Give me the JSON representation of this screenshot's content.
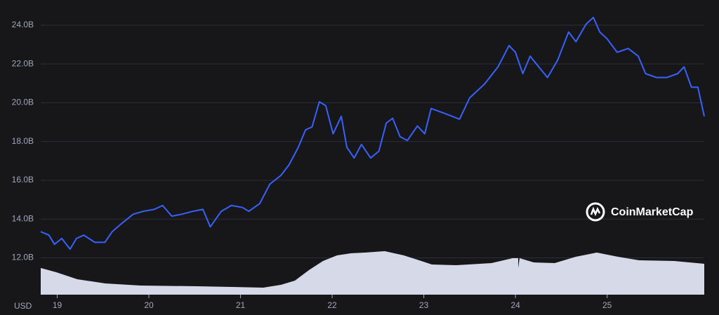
{
  "chart_data": {
    "type": "line",
    "x": [
      18.82,
      18.91,
      18.97,
      19.05,
      19.14,
      19.21,
      19.29,
      19.41,
      19.52,
      19.6,
      19.71,
      19.83,
      19.94,
      20.06,
      20.15,
      20.25,
      20.36,
      20.48,
      20.59,
      20.67,
      20.79,
      20.9,
      21.02,
      21.09,
      21.21,
      21.32,
      21.44,
      21.53,
      21.63,
      21.71,
      21.78,
      21.86,
      21.93,
      22.01,
      22.1,
      22.16,
      22.24,
      22.32,
      22.42,
      22.51,
      22.59,
      22.66,
      22.74,
      22.82,
      22.93,
      23.01,
      23.08,
      23.2,
      23.31,
      23.39,
      23.5,
      23.66,
      23.81,
      23.93,
      24.0,
      24.08,
      24.16,
      24.28,
      24.35,
      24.46,
      24.58,
      24.66,
      24.77,
      24.85,
      24.92,
      25.0,
      25.11,
      25.23,
      25.34,
      25.42,
      25.54,
      25.65,
      25.77,
      25.84,
      25.92,
      25.99,
      26.06
    ],
    "series": [
      {
        "color": "#3861fb",
        "values": [
          13.35,
          13.17,
          12.7,
          13.0,
          12.45,
          13.0,
          13.17,
          12.8,
          12.8,
          13.35,
          13.8,
          14.25,
          14.4,
          14.5,
          14.7,
          14.15,
          14.25,
          14.4,
          14.5,
          13.6,
          14.4,
          14.7,
          14.6,
          14.4,
          14.8,
          15.8,
          16.25,
          16.8,
          17.7,
          18.6,
          18.75,
          20.05,
          19.85,
          18.4,
          19.3,
          17.7,
          17.15,
          17.85,
          17.15,
          17.5,
          18.95,
          19.2,
          18.25,
          18.05,
          18.8,
          18.4,
          19.7,
          19.5,
          19.3,
          19.15,
          20.25,
          20.95,
          21.85,
          22.95,
          22.6,
          21.5,
          22.4,
          21.7,
          21.3,
          22.2,
          23.65,
          23.15,
          24.05,
          24.4,
          23.65,
          23.3,
          22.6,
          22.8,
          22.4,
          21.5,
          21.3,
          21.3,
          21.5,
          21.85,
          20.8,
          20.8,
          19.3
        ]
      }
    ],
    "xlim": [
      18.82,
      26.06
    ],
    "xticks": [
      19,
      20,
      21,
      22,
      23,
      24,
      25
    ],
    "ylim": [
      10.1,
      25.3
    ],
    "yticks": [
      {
        "value": 12,
        "label": "12.0B"
      },
      {
        "value": 14,
        "label": "14.0B"
      },
      {
        "value": 16,
        "label": "16.0B"
      },
      {
        "value": 18,
        "label": "18.0B"
      },
      {
        "value": 20,
        "label": "20.0B"
      },
      {
        "value": 22,
        "label": "22.0B"
      },
      {
        "value": 24,
        "label": "24.0B"
      }
    ],
    "grid": true,
    "y_unit_label": "USD",
    "watermark": "CoinMarketCap"
  }
}
